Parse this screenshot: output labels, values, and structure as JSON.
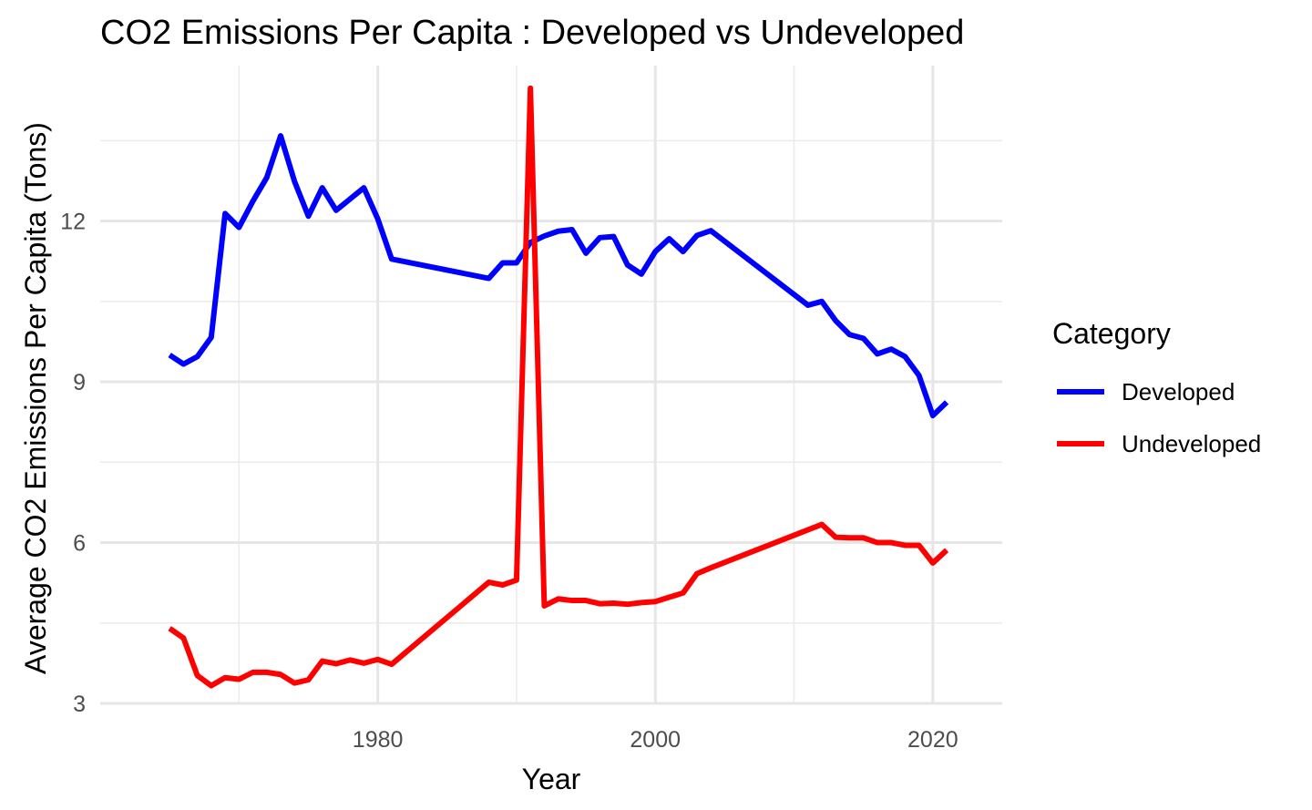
{
  "chart_data": {
    "type": "line",
    "title": "CO2 Emissions Per Capita : Developed vs Undeveloped",
    "xlabel": "Year",
    "ylabel": "Average CO2 Emissions Per Capita (Tons)",
    "xlim": [
      1960,
      2025
    ],
    "ylim": [
      3,
      14.9
    ],
    "x_ticks": [
      1980,
      2000,
      2020
    ],
    "x_tick_labels": [
      "1980",
      "2000",
      "2020"
    ],
    "x_minor_ticks": [
      1970,
      1990,
      2010
    ],
    "y_ticks": [
      3,
      6,
      9,
      12
    ],
    "y_tick_labels": [
      "3",
      "6",
      "9",
      "12"
    ],
    "y_minor_ticks": [
      4.5,
      7.5,
      10.5,
      13.5
    ],
    "grid": true,
    "legend": {
      "title": "Category",
      "placement": "right"
    },
    "series": [
      {
        "name": "Developed",
        "color": "#0000ff",
        "points": [
          [
            1965,
            9.5
          ],
          [
            1966,
            9.33
          ],
          [
            1967,
            9.47
          ],
          [
            1968,
            9.83
          ],
          [
            1969,
            12.14
          ],
          [
            1970,
            11.88
          ],
          [
            1971,
            12.37
          ],
          [
            1972,
            12.81
          ],
          [
            1973,
            13.59
          ],
          [
            1974,
            12.74
          ],
          [
            1975,
            12.09
          ],
          [
            1976,
            12.62
          ],
          [
            1977,
            12.2
          ],
          [
            1978,
            12.41
          ],
          [
            1979,
            12.62
          ],
          [
            1980,
            12.04
          ],
          [
            1981,
            11.29
          ],
          [
            1988,
            10.93
          ],
          [
            1989,
            11.22
          ],
          [
            1990,
            11.22
          ],
          [
            1991,
            11.6
          ],
          [
            1992,
            11.72
          ],
          [
            1993,
            11.81
          ],
          [
            1994,
            11.84
          ],
          [
            1995,
            11.4
          ],
          [
            1996,
            11.69
          ],
          [
            1997,
            11.71
          ],
          [
            1998,
            11.18
          ],
          [
            1999,
            11.01
          ],
          [
            2000,
            11.43
          ],
          [
            2001,
            11.67
          ],
          [
            2002,
            11.43
          ],
          [
            2003,
            11.73
          ],
          [
            2004,
            11.82
          ],
          [
            2011,
            10.43
          ],
          [
            2012,
            10.5
          ],
          [
            2013,
            10.14
          ],
          [
            2014,
            9.88
          ],
          [
            2015,
            9.81
          ],
          [
            2016,
            9.52
          ],
          [
            2017,
            9.61
          ],
          [
            2018,
            9.47
          ],
          [
            2019,
            9.12
          ],
          [
            2020,
            8.37
          ],
          [
            2021,
            8.62
          ]
        ]
      },
      {
        "name": "Undeveloped",
        "color": "#ff0000",
        "points": [
          [
            1965,
            4.4
          ],
          [
            1966,
            4.22
          ],
          [
            1967,
            3.52
          ],
          [
            1968,
            3.33
          ],
          [
            1969,
            3.48
          ],
          [
            1970,
            3.45
          ],
          [
            1971,
            3.58
          ],
          [
            1972,
            3.58
          ],
          [
            1973,
            3.54
          ],
          [
            1974,
            3.38
          ],
          [
            1975,
            3.44
          ],
          [
            1976,
            3.79
          ],
          [
            1977,
            3.74
          ],
          [
            1978,
            3.81
          ],
          [
            1979,
            3.75
          ],
          [
            1980,
            3.82
          ],
          [
            1981,
            3.73
          ],
          [
            1988,
            5.26
          ],
          [
            1989,
            5.21
          ],
          [
            1990,
            5.3
          ],
          [
            1991,
            14.48
          ],
          [
            1992,
            4.82
          ],
          [
            1993,
            4.95
          ],
          [
            1994,
            4.92
          ],
          [
            1995,
            4.92
          ],
          [
            1996,
            4.86
          ],
          [
            1997,
            4.87
          ],
          [
            1998,
            4.85
          ],
          [
            1999,
            4.88
          ],
          [
            2000,
            4.9
          ],
          [
            2001,
            4.98
          ],
          [
            2002,
            5.06
          ],
          [
            2003,
            5.42
          ],
          [
            2004,
            5.53
          ],
          [
            2012,
            6.34
          ],
          [
            2013,
            6.1
          ],
          [
            2014,
            6.09
          ],
          [
            2015,
            6.09
          ],
          [
            2016,
            6.0
          ],
          [
            2017,
            6.0
          ],
          [
            2018,
            5.95
          ],
          [
            2019,
            5.95
          ],
          [
            2020,
            5.62
          ],
          [
            2021,
            5.86
          ]
        ]
      }
    ]
  }
}
